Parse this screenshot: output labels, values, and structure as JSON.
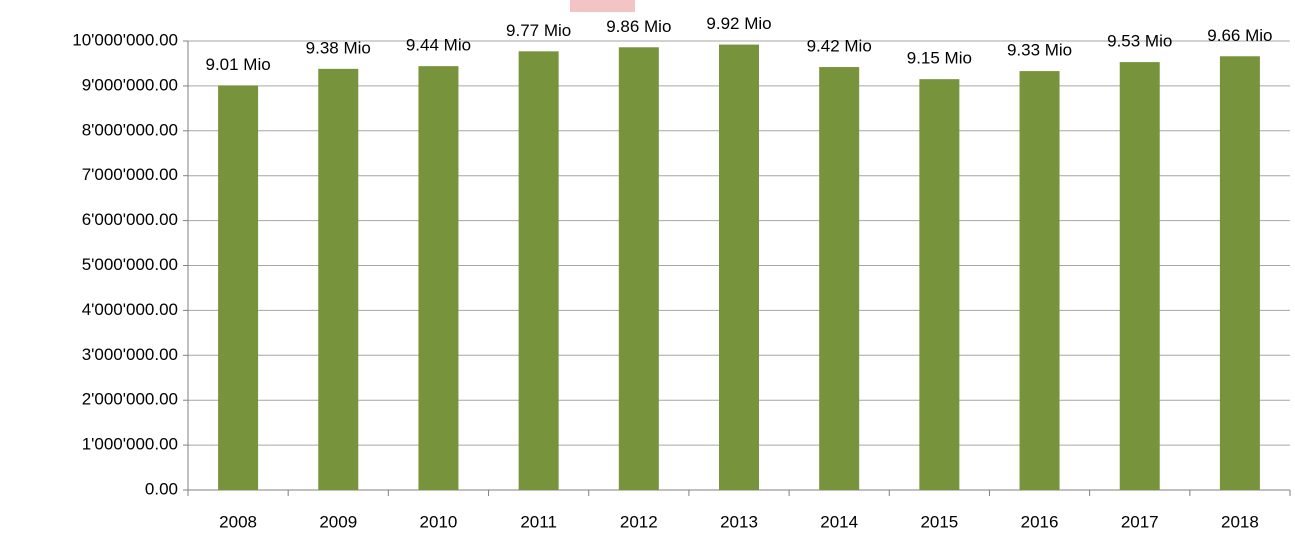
{
  "chart_data": {
    "type": "bar",
    "categories": [
      "2008",
      "2009",
      "2010",
      "2011",
      "2012",
      "2013",
      "2014",
      "2015",
      "2016",
      "2017",
      "2018"
    ],
    "values": [
      9010000,
      9380000,
      9440000,
      9770000,
      9860000,
      9920000,
      9420000,
      9150000,
      9330000,
      9530000,
      9660000
    ],
    "value_labels": [
      "9.01 Mio",
      "9.38 Mio",
      "9.44 Mio",
      "9.77 Mio",
      "9.86 Mio",
      "9.92 Mio",
      "9.42 Mio",
      "9.15 Mio",
      "9.33 Mio",
      "9.53 Mio",
      "9.66 Mio"
    ],
    "color": "#77933c",
    "ylim": [
      0,
      10000000
    ],
    "yticks": [
      {
        "value": 0,
        "label": "0.00"
      },
      {
        "value": 1000000,
        "label": "1'000'000.00"
      },
      {
        "value": 2000000,
        "label": "2'000'000.00"
      },
      {
        "value": 3000000,
        "label": "3'000'000.00"
      },
      {
        "value": 4000000,
        "label": "4'000'000.00"
      },
      {
        "value": 5000000,
        "label": "5'000'000.00"
      },
      {
        "value": 6000000,
        "label": "6'000'000.00"
      },
      {
        "value": 7000000,
        "label": "7'000'000.00"
      },
      {
        "value": 8000000,
        "label": "8'000'000.00"
      },
      {
        "value": 9000000,
        "label": "9'000'000.00"
      },
      {
        "value": 10000000,
        "label": "10'000'000.00"
      }
    ],
    "grid": true
  }
}
